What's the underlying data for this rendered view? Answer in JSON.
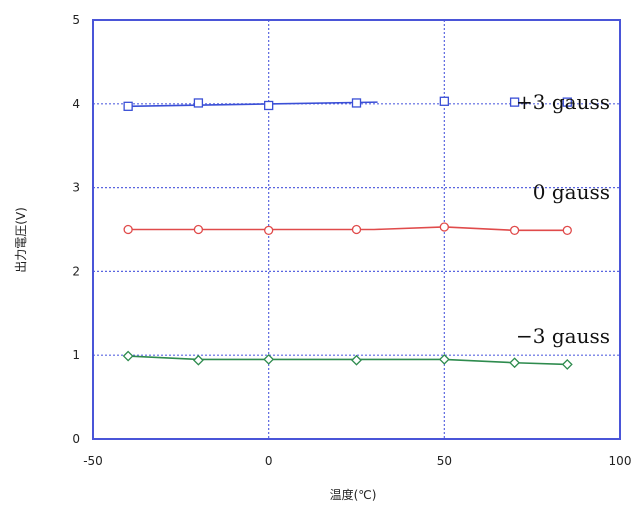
{
  "chart_data": {
    "type": "line",
    "xlabel": "温度(℃)",
    "ylabel": "出力電圧(V)",
    "xlim": [
      -50,
      100
    ],
    "ylim": [
      0,
      5
    ],
    "xticks": [
      "-50",
      "0",
      "50",
      "100"
    ],
    "yticks": [
      "0",
      "1",
      "2",
      "3",
      "4",
      "5"
    ],
    "grid": true,
    "x": [
      -40,
      -20,
      0,
      25,
      50,
      70,
      85
    ],
    "series": [
      {
        "name": "+3 gauss",
        "color": "#3a4fd6",
        "marker": "square",
        "values": [
          3.97,
          4.01,
          3.98,
          4.01,
          4.03,
          4.02,
          4.02
        ],
        "fit_line": [
          [
            -40,
            3.97
          ],
          [
            31,
            4.02
          ]
        ]
      },
      {
        "name": "0 gauss",
        "color": "#e04b4b",
        "marker": "circle",
        "values": [
          2.5,
          2.5,
          2.49,
          2.5,
          2.53,
          2.49,
          2.49
        ],
        "fit_line": [
          [
            -40,
            2.5
          ],
          [
            30,
            2.5
          ],
          [
            50,
            2.53
          ],
          [
            70,
            2.49
          ],
          [
            85,
            2.49
          ]
        ]
      },
      {
        "name": "−3 gauss",
        "color": "#2e8b4e",
        "marker": "diamond",
        "values": [
          0.99,
          0.94,
          0.95,
          0.94,
          0.95,
          0.91,
          0.89
        ],
        "fit_line": [
          [
            -40,
            0.99
          ],
          [
            -20,
            0.95
          ],
          [
            0,
            0.95
          ],
          [
            25,
            0.95
          ],
          [
            50,
            0.95
          ],
          [
            70,
            0.91
          ],
          [
            85,
            0.89
          ]
        ]
      }
    ]
  }
}
